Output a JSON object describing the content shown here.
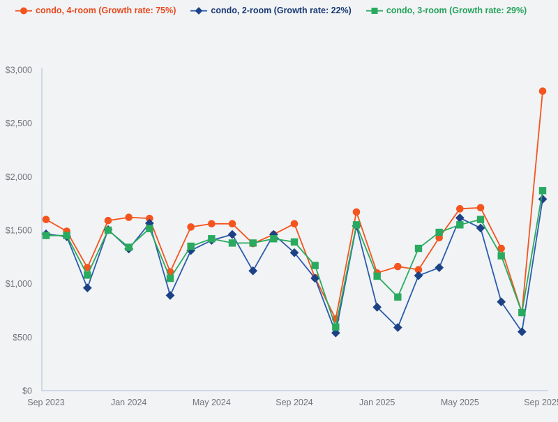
{
  "page": {
    "background_color": "#f1f3f5"
  },
  "legend": {
    "items": [
      {
        "id": "condo-4-room",
        "label": "condo, 4-room (Growth rate: 75%)",
        "text_color": "#e8491d",
        "marker": "circle"
      },
      {
        "id": "condo-2-room",
        "label": "condo, 2-room (Growth rate: 22%)",
        "text_color": "#1b3a74",
        "marker": "diamond"
      },
      {
        "id": "condo-3-room",
        "label": "condo, 3-room (Growth rate: 29%)",
        "text_color": "#27a35b",
        "marker": "square"
      }
    ]
  },
  "chart_data": {
    "type": "line",
    "title": "",
    "xlabel": "",
    "ylabel": "",
    "x_labels": [
      "Sep 2023",
      "Oct 2023",
      "Nov 2023",
      "Dec 2023",
      "Jan 2024",
      "Feb 2024",
      "Mar 2024",
      "Apr 2024",
      "May 2024",
      "Jun 2024",
      "Jul 2024",
      "Aug 2024",
      "Sep 2024",
      "Oct 2024",
      "Nov 2024",
      "Dec 2024",
      "Jan 2025",
      "Feb 2025",
      "Mar 2025",
      "Apr 2025",
      "May 2025",
      "Jun 2025",
      "Jul 2025",
      "Aug 2025",
      "Sep 2025"
    ],
    "series": [
      {
        "id": "condo-4-room",
        "name": "condo, 4-room",
        "growth_rate": "75%",
        "marker": "circle",
        "line_color": "#f4541d",
        "marker_color": "#f4541d",
        "values": [
          1600,
          1490,
          1150,
          1590,
          1620,
          1610,
          1110,
          1530,
          1560,
          1560,
          1375,
          1460,
          1560,
          1055,
          670,
          1670,
          1100,
          1160,
          1130,
          1430,
          1700,
          1710,
          1330,
          730,
          2800
        ]
      },
      {
        "id": "condo-2-room",
        "name": "condo, 2-room",
        "growth_rate": "22%",
        "marker": "diamond",
        "line_color": "#2c5cab",
        "marker_color": "#1d4185",
        "values": [
          1465,
          1440,
          960,
          1505,
          1325,
          1565,
          890,
          1310,
          1405,
          1460,
          1120,
          1460,
          1290,
          1050,
          540,
          1540,
          780,
          590,
          1075,
          1150,
          1615,
          1520,
          830,
          550,
          1790
        ]
      },
      {
        "id": "condo-3-room",
        "name": "condo, 3-room",
        "growth_rate": "29%",
        "marker": "square",
        "line_color": "#2aaa5f",
        "marker_color": "#2aaa5f",
        "values": [
          1450,
          1450,
          1080,
          1500,
          1340,
          1515,
          1050,
          1350,
          1420,
          1380,
          1380,
          1420,
          1390,
          1170,
          595,
          1550,
          1070,
          875,
          1330,
          1480,
          1550,
          1600,
          1260,
          730,
          1870
        ]
      }
    ],
    "ylim": [
      0,
      3000
    ],
    "y_ticks": [
      {
        "value": 0,
        "label": "$0"
      },
      {
        "value": 500,
        "label": "$500"
      },
      {
        "value": 1000,
        "label": "$1,000"
      },
      {
        "value": 1500,
        "label": "$1,500"
      },
      {
        "value": 2000,
        "label": "$2,000"
      },
      {
        "value": 2500,
        "label": "$2,500"
      },
      {
        "value": 3000,
        "label": "$3,000"
      }
    ],
    "x_ticks": [
      {
        "index": 0,
        "label": "Sep 2023"
      },
      {
        "index": 4,
        "label": "Jan 2024"
      },
      {
        "index": 8,
        "label": "May 2024"
      },
      {
        "index": 12,
        "label": "Sep 2024"
      },
      {
        "index": 16,
        "label": "Jan 2025"
      },
      {
        "index": 20,
        "label": "May 2025"
      },
      {
        "index": 24,
        "label": "Sep 2025"
      }
    ],
    "grid": false,
    "legend_position": "top",
    "axis_color": "#c6d0e2",
    "tick_color": "#72727b"
  }
}
